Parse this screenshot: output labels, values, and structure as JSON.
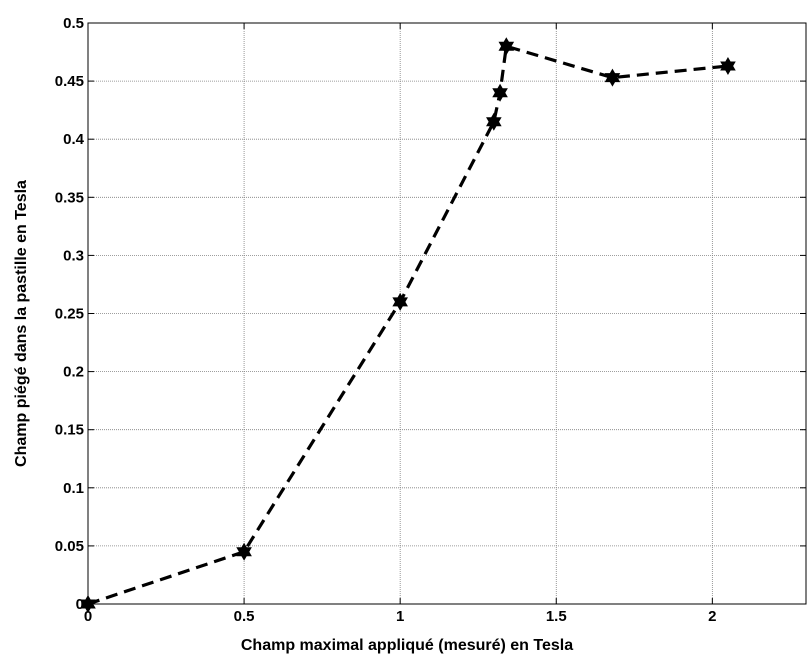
{
  "chart_data": {
    "type": "line",
    "title": "",
    "xlabel": "Champ maximal appliqué (mesuré) en Tesla",
    "ylabel": "Champ piégé dans la pastille en Tesla",
    "xlim": [
      0,
      2.3
    ],
    "ylim": [
      0,
      0.5
    ],
    "grid": true,
    "x_ticks": [
      0,
      0.5,
      1,
      1.5,
      2
    ],
    "x_tick_labels": [
      "0",
      "0.5",
      "1",
      "1.5",
      "2"
    ],
    "y_ticks": [
      0,
      0.05,
      0.1,
      0.15,
      0.2,
      0.25,
      0.3,
      0.35,
      0.4,
      0.45,
      0.5
    ],
    "y_tick_labels": [
      "0",
      "0.05",
      "0.1",
      "0.15",
      "0.2",
      "0.25",
      "0.3",
      "0.35",
      "0.4",
      "0.45",
      "0.5"
    ],
    "series": [
      {
        "line_style": "dashed",
        "marker": "hexagram",
        "color": "#000000",
        "x": [
          0,
          0.5,
          1.0,
          1.3,
          1.32,
          1.34,
          1.68,
          2.05
        ],
        "y": [
          0.0,
          0.045,
          0.26,
          0.415,
          0.44,
          0.48,
          0.453,
          0.463
        ]
      }
    ]
  }
}
